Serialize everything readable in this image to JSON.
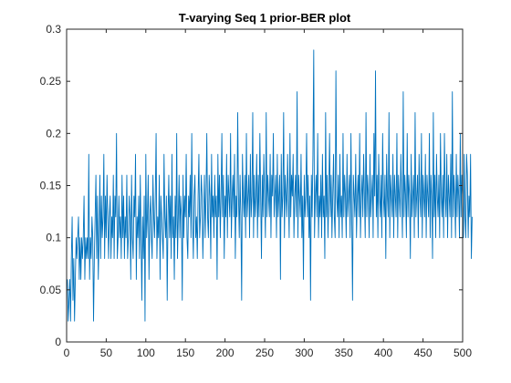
{
  "window": {
    "background": "#ffffff"
  },
  "chart_data": {
    "type": "line",
    "title": "T-varying Seq 1 prior-BER plot",
    "xlabel": "",
    "ylabel": "",
    "xlim": [
      0,
      500
    ],
    "ylim": [
      0,
      0.3
    ],
    "xticks": [
      0,
      50,
      100,
      150,
      200,
      250,
      300,
      350,
      400,
      450,
      500
    ],
    "yticks": [
      0,
      0.05,
      0.1,
      0.15,
      0.2,
      0.25,
      0.3
    ],
    "xtick_labels": [
      "0",
      "50",
      "100",
      "150",
      "200",
      "250",
      "300",
      "350",
      "400",
      "450",
      "500"
    ],
    "ytick_labels": [
      "0",
      "0.05",
      "0.1",
      "0.15",
      "0.2",
      "0.25",
      "0.3"
    ],
    "grid": false,
    "legend": "none",
    "box": true,
    "series": [
      {
        "color": "#0072bd",
        "x_start": 1,
        "x_step": 1,
        "values": [
          0.06,
          0.02,
          0.04,
          0.06,
          0.02,
          0.08,
          0.12,
          0.04,
          0.08,
          0.02,
          0.06,
          0.1,
          0.08,
          0.1,
          0.12,
          0.06,
          0.1,
          0.06,
          0.1,
          0.08,
          0.1,
          0.14,
          0.06,
          0.1,
          0.08,
          0.1,
          0.08,
          0.18,
          0.06,
          0.1,
          0.08,
          0.12,
          0.1,
          0.02,
          0.08,
          0.12,
          0.16,
          0.08,
          0.14,
          0.06,
          0.1,
          0.16,
          0.08,
          0.14,
          0.1,
          0.12,
          0.18,
          0.08,
          0.14,
          0.1,
          0.16,
          0.12,
          0.08,
          0.12,
          0.14,
          0.08,
          0.12,
          0.1,
          0.16,
          0.08,
          0.14,
          0.12,
          0.2,
          0.08,
          0.1,
          0.14,
          0.1,
          0.12,
          0.08,
          0.16,
          0.1,
          0.14,
          0.08,
          0.12,
          0.1,
          0.16,
          0.08,
          0.1,
          0.14,
          0.12,
          0.06,
          0.16,
          0.1,
          0.08,
          0.14,
          0.12,
          0.18,
          0.06,
          0.12,
          0.1,
          0.14,
          0.08,
          0.16,
          0.1,
          0.04,
          0.12,
          0.08,
          0.14,
          0.02,
          0.18,
          0.1,
          0.12,
          0.16,
          0.06,
          0.12,
          0.14,
          0.1,
          0.08,
          0.16,
          0.12,
          0.1,
          0.14,
          0.2,
          0.08,
          0.12,
          0.1,
          0.16,
          0.06,
          0.14,
          0.12,
          0.1,
          0.08,
          0.18,
          0.12,
          0.1,
          0.14,
          0.04,
          0.12,
          0.16,
          0.1,
          0.14,
          0.08,
          0.18,
          0.1,
          0.12,
          0.06,
          0.14,
          0.1,
          0.2,
          0.08,
          0.12,
          0.16,
          0.1,
          0.14,
          0.12,
          0.04,
          0.16,
          0.1,
          0.14,
          0.12,
          0.18,
          0.1,
          0.08,
          0.14,
          0.12,
          0.16,
          0.1,
          0.2,
          0.12,
          0.08,
          0.14,
          0.16,
          0.1,
          0.12,
          0.08,
          0.14,
          0.18,
          0.1,
          0.12,
          0.16,
          0.14,
          0.08,
          0.12,
          0.16,
          0.1,
          0.14,
          0.2,
          0.12,
          0.1,
          0.16,
          0.14,
          0.08,
          0.18,
          0.12,
          0.14,
          0.1,
          0.16,
          0.12,
          0.14,
          0.06,
          0.18,
          0.12,
          0.16,
          0.1,
          0.14,
          0.2,
          0.12,
          0.16,
          0.08,
          0.14,
          0.12,
          0.18,
          0.1,
          0.16,
          0.14,
          0.12,
          0.2,
          0.1,
          0.14,
          0.16,
          0.12,
          0.18,
          0.08,
          0.14,
          0.12,
          0.22,
          0.14,
          0.1,
          0.16,
          0.12,
          0.04,
          0.18,
          0.14,
          0.12,
          0.16,
          0.1,
          0.2,
          0.12,
          0.14,
          0.16,
          0.1,
          0.18,
          0.12,
          0.14,
          0.22,
          0.1,
          0.16,
          0.12,
          0.14,
          0.18,
          0.1,
          0.16,
          0.12,
          0.2,
          0.14,
          0.08,
          0.16,
          0.12,
          0.18,
          0.14,
          0.1,
          0.22,
          0.12,
          0.16,
          0.14,
          0.12,
          0.18,
          0.1,
          0.16,
          0.14,
          0.2,
          0.12,
          0.14,
          0.16,
          0.1,
          0.18,
          0.12,
          0.14,
          0.16,
          0.06,
          0.18,
          0.12,
          0.14,
          0.22,
          0.1,
          0.16,
          0.14,
          0.12,
          0.18,
          0.14,
          0.1,
          0.2,
          0.12,
          0.16,
          0.14,
          0.18,
          0.1,
          0.14,
          0.16,
          0.12,
          0.24,
          0.1,
          0.16,
          0.14,
          0.12,
          0.18,
          0.1,
          0.14,
          0.06,
          0.16,
          0.12,
          0.14,
          0.2,
          0.12,
          0.16,
          0.1,
          0.14,
          0.04,
          0.16,
          0.12,
          0.18,
          0.28,
          0.1,
          0.14,
          0.16,
          0.12,
          0.2,
          0.1,
          0.14,
          0.12,
          0.16,
          0.1,
          0.18,
          0.12,
          0.14,
          0.08,
          0.22,
          0.12,
          0.16,
          0.1,
          0.14,
          0.2,
          0.12,
          0.16,
          0.1,
          0.14,
          0.18,
          0.12,
          0.1,
          0.26,
          0.14,
          0.12,
          0.16,
          0.1,
          0.18,
          0.12,
          0.14,
          0.1,
          0.2,
          0.12,
          0.16,
          0.14,
          0.1,
          0.18,
          0.12,
          0.14,
          0.16,
          0.1,
          0.2,
          0.12,
          0.04,
          0.16,
          0.14,
          0.12,
          0.18,
          0.1,
          0.14,
          0.16,
          0.12,
          0.2,
          0.1,
          0.14,
          0.16,
          0.12,
          0.18,
          0.14,
          0.1,
          0.22,
          0.12,
          0.16,
          0.14,
          0.1,
          0.18,
          0.12,
          0.14,
          0.16,
          0.1,
          0.2,
          0.14,
          0.26,
          0.12,
          0.16,
          0.1,
          0.18,
          0.14,
          0.12,
          0.16,
          0.1,
          0.2,
          0.14,
          0.12,
          0.16,
          0.08,
          0.18,
          0.14,
          0.12,
          0.22,
          0.1,
          0.16,
          0.14,
          0.12,
          0.18,
          0.1,
          0.16,
          0.14,
          0.12,
          0.2,
          0.1,
          0.16,
          0.14,
          0.12,
          0.18,
          0.14,
          0.1,
          0.24,
          0.12,
          0.16,
          0.14,
          0.1,
          0.2,
          0.12,
          0.16,
          0.14,
          0.08,
          0.18,
          0.12,
          0.14,
          0.16,
          0.1,
          0.22,
          0.12,
          0.14,
          0.16,
          0.1,
          0.18,
          0.14,
          0.12,
          0.2,
          0.1,
          0.16,
          0.14,
          0.12,
          0.18,
          0.1,
          0.16,
          0.14,
          0.12,
          0.2,
          0.1,
          0.16,
          0.14,
          0.08,
          0.22,
          0.12,
          0.16,
          0.1,
          0.18,
          0.14,
          0.12,
          0.16,
          0.1,
          0.2,
          0.14,
          0.12,
          0.16,
          0.1,
          0.2,
          0.14,
          0.12,
          0.18,
          0.1,
          0.16,
          0.14,
          0.12,
          0.18,
          0.1,
          0.24,
          0.12,
          0.16,
          0.14,
          0.1,
          0.18,
          0.12,
          0.16,
          0.14,
          0.1,
          0.2,
          0.12,
          0.16,
          0.14,
          0.1,
          0.18,
          0.12,
          0.1,
          0.18,
          0.16,
          0.1,
          0.14,
          0.12,
          0.18,
          0.08,
          0.12
        ]
      }
    ]
  }
}
